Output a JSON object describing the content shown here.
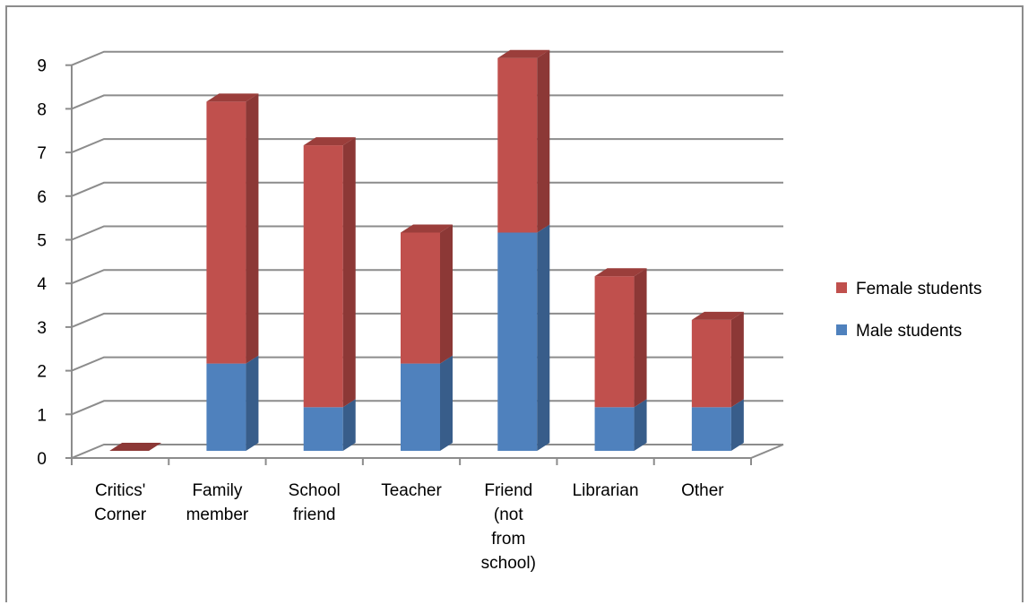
{
  "chart_data": {
    "type": "bar",
    "stacked": true,
    "three_d": true,
    "categories": [
      [
        "Critics'",
        "Corner"
      ],
      [
        "Family",
        "member"
      ],
      [
        "School",
        "friend"
      ],
      [
        "Teacher"
      ],
      [
        "Friend",
        "(not",
        "from",
        "school)"
      ],
      [
        "Librarian"
      ],
      [
        "Other"
      ]
    ],
    "series": [
      {
        "name": "Male students",
        "values": [
          0,
          2,
          1,
          2,
          5,
          1,
          1
        ],
        "color": "#4f81bd",
        "side_color": "#385d8a",
        "top_color": "#5a8ac6"
      },
      {
        "name": "Female students",
        "values": [
          0,
          6,
          6,
          3,
          4,
          3,
          2
        ],
        "color": "#c0504d",
        "side_color": "#8c3836",
        "top_color": "#9b3e3b"
      }
    ],
    "y_ticks": [
      "0",
      "1",
      "2",
      "3",
      "4",
      "5",
      "6",
      "7",
      "8",
      "9"
    ],
    "ylim": [
      0,
      9
    ],
    "grid": true,
    "legend_position": "right",
    "legend_order": [
      "Female students",
      "Male students"
    ]
  }
}
